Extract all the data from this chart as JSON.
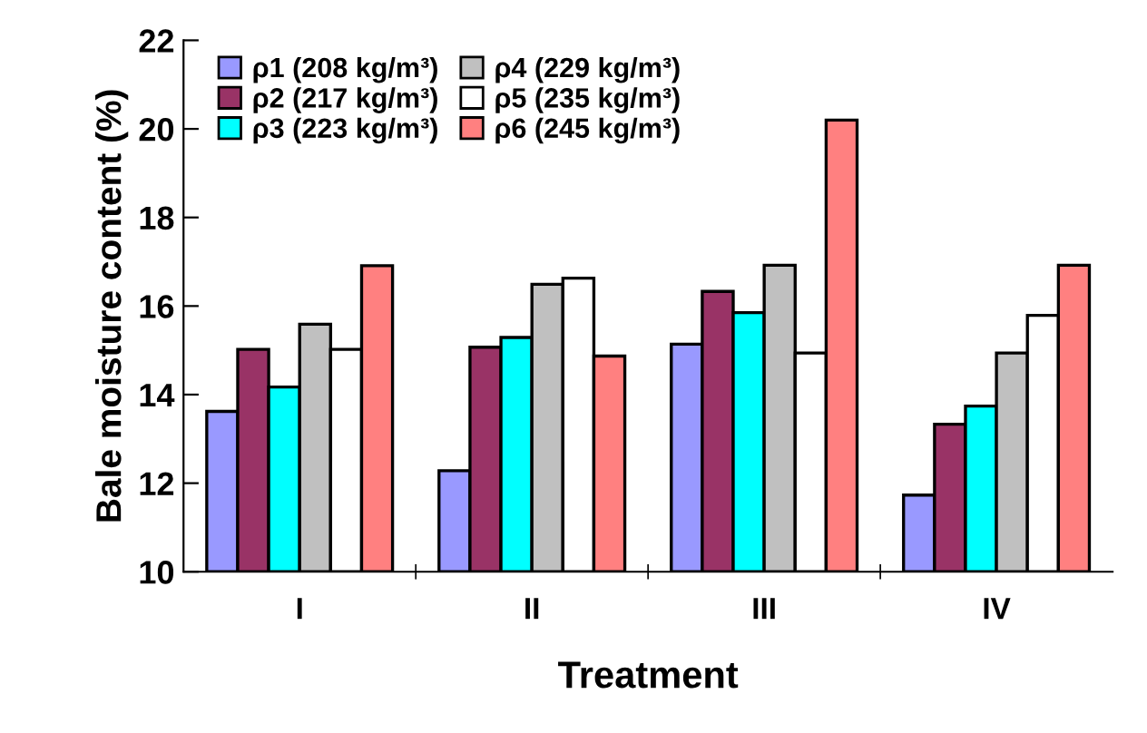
{
  "chart_data": {
    "type": "bar",
    "xlabel": "Treatment",
    "ylabel": "Bale moisture content (%)",
    "categories": [
      "I",
      "II",
      "III",
      "IV"
    ],
    "series": [
      {
        "name": "ρ1 (208 kg/m³)",
        "color": "#9999ff",
        "values": [
          13.62,
          12.28,
          15.14,
          11.73
        ]
      },
      {
        "name": "ρ2 (217 kg/m³)",
        "color": "#993366",
        "values": [
          15.02,
          15.07,
          16.33,
          13.33
        ]
      },
      {
        "name": "ρ3 (223 kg/m³)",
        "color": "#00ffff",
        "values": [
          14.17,
          15.29,
          15.85,
          13.74
        ]
      },
      {
        "name": "ρ4 (229 kg/m³)",
        "color": "#c0c0c0",
        "values": [
          15.59,
          16.49,
          16.92,
          14.94
        ]
      },
      {
        "name": "ρ5 (235 kg/m³)",
        "color": "#ffffff",
        "values": [
          15.02,
          16.63,
          14.94,
          15.79
        ]
      },
      {
        "name": "ρ6 (245 kg/m³)",
        "color": "#ff8080",
        "values": [
          16.91,
          14.87,
          20.2,
          16.92
        ]
      }
    ],
    "ylim": [
      10,
      22
    ],
    "yticks": [
      10,
      12,
      14,
      16,
      18,
      20,
      22
    ],
    "grid": false,
    "legend": "top left"
  }
}
